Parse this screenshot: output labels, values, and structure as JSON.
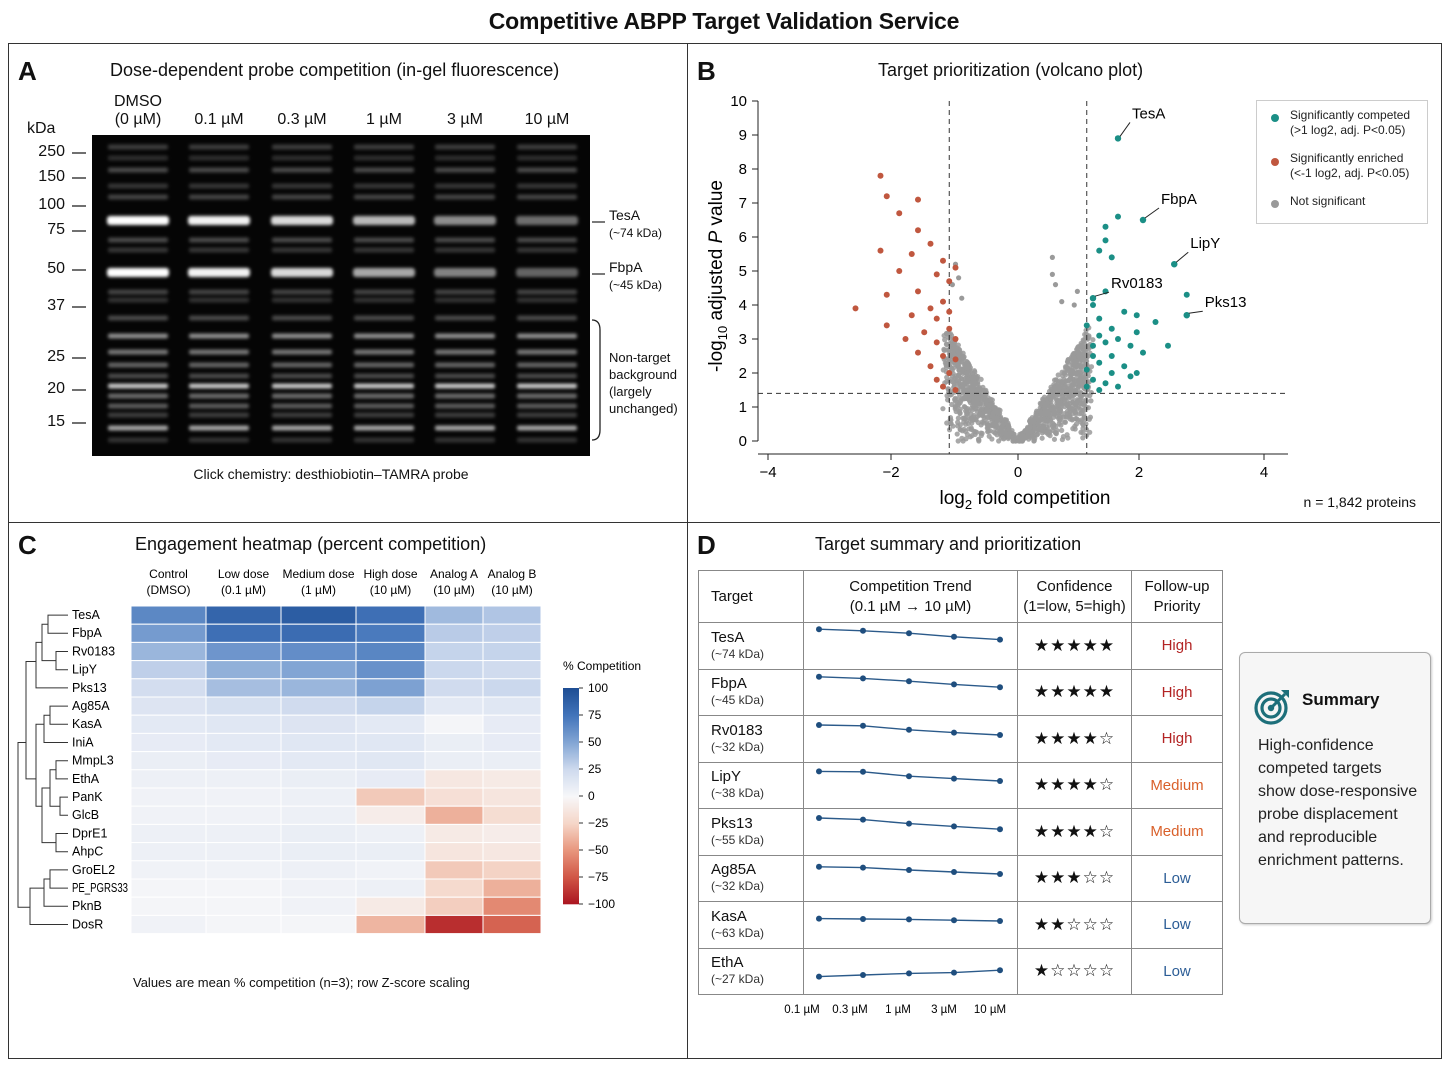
{
  "main_title": "Competitive ABPP Target Validation Service",
  "panel_a": {
    "letter": "A",
    "title": "Dose-dependent probe competition (in-gel fluorescence)",
    "kda_label": "kDa",
    "lanes": [
      {
        "l1": "DMSO",
        "l2": "(0 µM)"
      },
      {
        "l1": "0.1 µM",
        "l2": ""
      },
      {
        "l1": "0.3 µM",
        "l2": ""
      },
      {
        "l1": "1 µM",
        "l2": ""
      },
      {
        "l1": "3 µM",
        "l2": ""
      },
      {
        "l1": "10 µM",
        "l2": ""
      }
    ],
    "markers": [
      "250",
      "150",
      "100",
      "75",
      "50",
      "37",
      "25",
      "20",
      "15"
    ],
    "band_labels": [
      {
        "name": "TesA",
        "size": "(~74 kDa)"
      },
      {
        "name": "FbpA",
        "size": "(~45 kDa)"
      }
    ],
    "background_note": [
      "Non-target",
      "background",
      "(largely",
      "unchanged)"
    ],
    "caption": "Click chemistry: desthiobiotin–TAMRA probe"
  },
  "panel_b": {
    "letter": "B",
    "title": "Target prioritization (volcano plot)",
    "n_note": "n = 1,842 proteins",
    "legend": [
      {
        "l1": "Significantly competed",
        "l2": "(>1 log2, adj. P<0.05)",
        "color": "#1b8f86"
      },
      {
        "l1": "Significantly enriched",
        "l2": "(<-1 log2, adj. P<0.05)",
        "color": "#c0573f"
      },
      {
        "l1": "Not significant",
        "l2": "",
        "color": "#999999"
      }
    ]
  },
  "panel_c": {
    "letter": "C",
    "title": "Engagement heatmap (percent competition)",
    "columns": [
      {
        "l1": "Control",
        "l2": "(DMSO)"
      },
      {
        "l1": "Low dose",
        "l2": "(0.1 µM)"
      },
      {
        "l1": "Medium dose",
        "l2": "(1 µM)"
      },
      {
        "l1": "High dose",
        "l2": "(10 µM)"
      },
      {
        "l1": "Analog A",
        "l2": "(10 µM)"
      },
      {
        "l1": "Analog B",
        "l2": "(10 µM)"
      }
    ],
    "colorbar_title": "% Competition",
    "colorbar_ticks": [
      "100",
      "75",
      "50",
      "25",
      "0",
      "−25",
      "−50",
      "−75",
      "−100"
    ],
    "footnote": "Values are mean % competition (n=3); row Z-score scaling"
  },
  "panel_d": {
    "letter": "D",
    "title": "Target summary and prioritization",
    "headers": {
      "target": "Target",
      "trend_1": "Competition Trend",
      "trend_2": "(0.1 µM → 10 µM)",
      "conf_1": "Confidence",
      "conf_2": "(1=low, 5=high)",
      "prio_1": "Follow-up",
      "prio_2": "Priority"
    },
    "rows": [
      {
        "name": "TesA",
        "size": "(~74 kDa)",
        "stars": "★★★★★",
        "priority": "High",
        "trend": [
          92,
          88,
          82,
          73,
          66
        ]
      },
      {
        "name": "FbpA",
        "size": "(~45 kDa)",
        "stars": "★★★★★",
        "priority": "High",
        "trend": [
          88,
          84,
          77,
          69,
          62
        ]
      },
      {
        "name": "Rv0183",
        "size": "(~32 kDa)",
        "stars": "★★★★☆",
        "priority": "High",
        "trend": [
          85,
          83,
          73,
          66,
          60
        ]
      },
      {
        "name": "LipY",
        "size": "(~38 kDa)",
        "stars": "★★★★☆",
        "priority": "Medium",
        "trend": [
          84,
          83,
          72,
          66,
          60
        ]
      },
      {
        "name": "Pks13",
        "size": "(~55 kDa)",
        "stars": "★★★★☆",
        "priority": "Medium",
        "trend": [
          85,
          81,
          71,
          64,
          57
        ]
      },
      {
        "name": "Ag85A",
        "size": "(~32 kDa)",
        "stars": "★★★☆☆",
        "priority": "Low",
        "trend": [
          78,
          76,
          70,
          65,
          60
        ]
      },
      {
        "name": "KasA",
        "size": "(~63 kDa)",
        "stars": "★★☆☆☆",
        "priority": "Low",
        "trend": [
          66,
          65,
          64,
          62,
          60
        ]
      },
      {
        "name": "EthA",
        "size": "(~27 kDa)",
        "stars": "★☆☆☆☆",
        "priority": "Low",
        "trend": [
          36,
          40,
          44,
          46,
          52
        ]
      }
    ],
    "trend_axis": [
      "0.1 µM",
      "0.3 µM",
      "1 µM",
      "3 µM",
      "10 µM"
    ],
    "priority_colors": {
      "High": "#b32424",
      "Medium": "#d9602a",
      "Low": "#2c5d96"
    },
    "summary_title": "Summary",
    "summary_text": "High-confidence competed targets show dose-responsive probe displacement and reproducible enrichment patterns."
  },
  "chart_data": [
    {
      "type": "volcano-scatter",
      "xlabel": "log2 fold competition",
      "ylabel": "-log10 adjusted P value",
      "xlim": [
        -4,
        4
      ],
      "ylim": [
        0,
        10
      ],
      "xticks": [
        "−4",
        "−2",
        "0",
        "2",
        "4"
      ],
      "yticks": [
        "0",
        "1",
        "2",
        "3",
        "4",
        "5",
        "6",
        "7",
        "8",
        "9",
        "10"
      ],
      "thresholds": {
        "x": [
          -1.1,
          1.1
        ],
        "y": 1.4
      },
      "labeled_points": [
        {
          "label": "TesA",
          "x": 1.6,
          "y": 8.9
        },
        {
          "label": "FbpA",
          "x": 2.0,
          "y": 6.5
        },
        {
          "label": "LipY",
          "x": 2.5,
          "y": 5.2
        },
        {
          "label": "Rv0183",
          "x": 1.2,
          "y": 4.2
        },
        {
          "label": "Pks13",
          "x": 2.7,
          "y": 3.7
        }
      ],
      "enriched_points": [
        [
          -2.2,
          7.8
        ],
        [
          -2.1,
          7.2
        ],
        [
          -1.6,
          7.1
        ],
        [
          -1.9,
          6.7
        ],
        [
          -1.6,
          6.2
        ],
        [
          -1.4,
          5.8
        ],
        [
          -2.2,
          5.6
        ],
        [
          -1.7,
          5.5
        ],
        [
          -1.2,
          5.3
        ],
        [
          -1.0,
          5.1
        ],
        [
          -1.9,
          5.0
        ],
        [
          -1.3,
          4.9
        ],
        [
          -1.1,
          4.7
        ],
        [
          -2.1,
          4.3
        ],
        [
          -1.6,
          4.4
        ],
        [
          -1.2,
          4.1
        ],
        [
          -2.6,
          3.9
        ],
        [
          -1.7,
          3.7
        ],
        [
          -1.3,
          3.6
        ],
        [
          -2.1,
          3.4
        ],
        [
          -1.5,
          3.2
        ],
        [
          -1.1,
          3.3
        ],
        [
          -1.8,
          3.0
        ],
        [
          -1.3,
          2.9
        ],
        [
          -1.0,
          3.0
        ],
        [
          -1.6,
          2.6
        ],
        [
          -1.2,
          2.5
        ],
        [
          -1.4,
          2.2
        ],
        [
          -1.1,
          2.0
        ],
        [
          -1.3,
          1.8
        ],
        [
          -1.2,
          1.6
        ],
        [
          -1.0,
          2.4
        ],
        [
          -1.1,
          3.8
        ],
        [
          -1.4,
          3.9
        ],
        [
          -1.0,
          1.5
        ]
      ],
      "competed_points": [
        [
          1.6,
          8.9
        ],
        [
          2.0,
          6.5
        ],
        [
          2.5,
          5.2
        ],
        [
          1.2,
          4.2
        ],
        [
          2.7,
          3.7
        ],
        [
          1.6,
          6.6
        ],
        [
          1.4,
          6.3
        ],
        [
          1.4,
          5.9
        ],
        [
          1.3,
          5.6
        ],
        [
          1.5,
          5.4
        ],
        [
          2.7,
          4.3
        ],
        [
          1.4,
          4.4
        ],
        [
          1.2,
          4.0
        ],
        [
          1.7,
          3.8
        ],
        [
          1.9,
          3.7
        ],
        [
          2.2,
          3.5
        ],
        [
          1.5,
          3.3
        ],
        [
          1.9,
          3.2
        ],
        [
          1.3,
          3.1
        ],
        [
          1.6,
          3.0
        ],
        [
          2.4,
          2.8
        ],
        [
          1.8,
          2.8
        ],
        [
          1.2,
          2.8
        ],
        [
          2.0,
          2.6
        ],
        [
          1.5,
          2.5
        ],
        [
          1.3,
          2.3
        ],
        [
          1.7,
          2.2
        ],
        [
          1.1,
          2.1
        ],
        [
          1.5,
          2.0
        ],
        [
          1.9,
          2.0
        ],
        [
          1.2,
          1.8
        ],
        [
          1.4,
          1.7
        ],
        [
          1.1,
          1.6
        ],
        [
          1.6,
          1.6
        ],
        [
          1.3,
          1.5
        ],
        [
          1.1,
          3.4
        ],
        [
          1.3,
          3.6
        ],
        [
          1.2,
          2.5
        ],
        [
          1.4,
          2.9
        ],
        [
          1.8,
          1.9
        ]
      ],
      "not_significant": "~1,760 grey points forming the V-shaped central cloud (|log2| < 1.1 or adj. P above threshold); scattered grey points reach ~5.2 on the left and ~5.4 on the right"
    },
    {
      "type": "heatmap",
      "rows": [
        "TesA",
        "FbpA",
        "Rv0183",
        "LipY",
        "Pks13",
        "Ag85A",
        "KasA",
        "IniA",
        "MmpL3",
        "EthA",
        "PanK",
        "GlcB",
        "DprE1",
        "AhpC",
        "GroEL2",
        "PE_PGRS33",
        "PknB",
        "DosR"
      ],
      "columns": [
        "Control (DMSO)",
        "Low dose (0.1 µM)",
        "Medium dose (1 µM)",
        "High dose (10 µM)",
        "Analog A (10 µM)",
        "Analog B (10 µM)"
      ],
      "values": [
        [
          65,
          85,
          90,
          78,
          40,
          35
        ],
        [
          55,
          78,
          80,
          72,
          32,
          30
        ],
        [
          42,
          58,
          62,
          66,
          28,
          28
        ],
        [
          30,
          45,
          50,
          60,
          26,
          24
        ],
        [
          22,
          38,
          42,
          52,
          24,
          26
        ],
        [
          16,
          20,
          24,
          28,
          12,
          14
        ],
        [
          12,
          14,
          16,
          12,
          2,
          10
        ],
        [
          10,
          12,
          14,
          14,
          8,
          10
        ],
        [
          8,
          10,
          12,
          14,
          8,
          8
        ],
        [
          6,
          6,
          8,
          10,
          -12,
          -10
        ],
        [
          4,
          4,
          6,
          -30,
          -18,
          -14
        ],
        [
          4,
          4,
          6,
          -8,
          -40,
          -20
        ],
        [
          6,
          6,
          8,
          6,
          -10,
          -8
        ],
        [
          6,
          6,
          8,
          8,
          -14,
          -12
        ],
        [
          4,
          4,
          6,
          4,
          -30,
          -26
        ],
        [
          2,
          2,
          4,
          6,
          -22,
          -40
        ],
        [
          2,
          2,
          4,
          -10,
          -28,
          -55
        ],
        [
          4,
          2,
          2,
          -38,
          -90,
          -70
        ]
      ],
      "zlim": [
        -100,
        100
      ],
      "colorbar": "% Competition"
    }
  ]
}
